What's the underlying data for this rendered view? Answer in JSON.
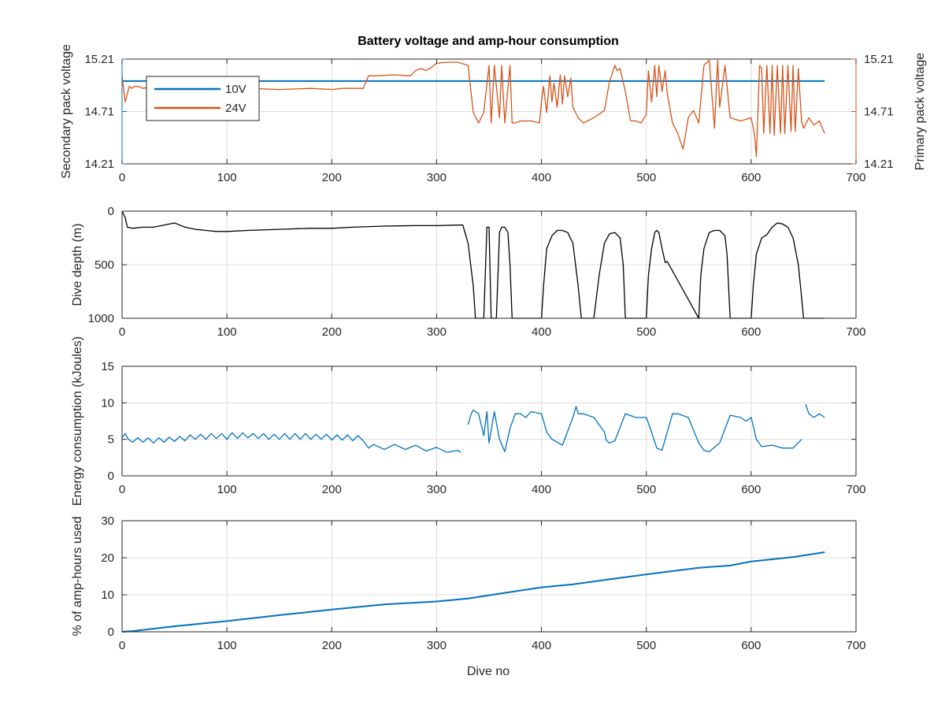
{
  "figure": {
    "title": "Battery voltage and amp-hour consumption",
    "xlabel": "Dive no"
  },
  "colors": {
    "axis": "#262626",
    "grid": "#dcdcdc",
    "blue": "#0072BD",
    "orange": "#D95319",
    "depth": "#000000",
    "legend_border": "#262626"
  },
  "chart_data": [
    {
      "type": "line",
      "id": "voltage",
      "title": "Battery voltage and amp-hour consumption",
      "xlabel": "",
      "ylabel": "Secondary pack voltage",
      "ylabel_right": "Primary pack voltage",
      "xlim": [
        0,
        700
      ],
      "ylim": [
        14.21,
        15.21
      ],
      "ylim_right": [
        14.21,
        15.21
      ],
      "xticks": [
        "0",
        "100",
        "200",
        "300",
        "400",
        "500",
        "600",
        "700"
      ],
      "yticks": [
        "14.21",
        "14.71",
        "15.21"
      ],
      "yticks_right": [
        "14.21",
        "14.71",
        "15.21"
      ],
      "grid": true,
      "legend": "top-left",
      "series": [
        {
          "name": "10V",
          "axis": "left",
          "color": "#0072BD",
          "x": [
            0,
            670
          ],
          "y": [
            15.0,
            15.0
          ]
        },
        {
          "name": "24V",
          "axis": "right",
          "color": "#D95319",
          "x": [
            0,
            3,
            5,
            7,
            9,
            12,
            15,
            20,
            30,
            40,
            50,
            55,
            60,
            70,
            80,
            100,
            120,
            150,
            180,
            200,
            210,
            220,
            230,
            235,
            240,
            260,
            275,
            280,
            285,
            290,
            295,
            300,
            310,
            320,
            330,
            335,
            340,
            345,
            350,
            352,
            355,
            360,
            362,
            365,
            370,
            372,
            375,
            380,
            390,
            398,
            400,
            402,
            405,
            408,
            410,
            412,
            415,
            418,
            420,
            422,
            425,
            428,
            430,
            435,
            440,
            450,
            460,
            465,
            470,
            472,
            475,
            480,
            485,
            490,
            495,
            500,
            502,
            505,
            508,
            510,
            512,
            515,
            518,
            520,
            525,
            530,
            535,
            540,
            545,
            550,
            555,
            560,
            565,
            568,
            570,
            575,
            580,
            590,
            600,
            603,
            605,
            608,
            610,
            612,
            615,
            618,
            620,
            622,
            625,
            628,
            630,
            632,
            635,
            638,
            640,
            642,
            645,
            648,
            650,
            655,
            660,
            665,
            670
          ],
          "y": [
            15.05,
            14.8,
            14.88,
            14.95,
            14.93,
            14.95,
            14.95,
            14.93,
            14.95,
            14.95,
            14.95,
            14.93,
            14.95,
            14.92,
            14.93,
            14.93,
            14.93,
            14.92,
            14.93,
            14.92,
            14.93,
            14.93,
            14.93,
            15.05,
            15.05,
            15.06,
            15.05,
            15.1,
            15.12,
            15.1,
            15.13,
            15.17,
            15.18,
            15.18,
            15.15,
            14.7,
            14.6,
            14.7,
            15.15,
            14.6,
            15.15,
            14.65,
            15.15,
            14.6,
            15.15,
            14.6,
            14.6,
            14.62,
            14.62,
            14.6,
            14.8,
            14.95,
            14.7,
            15.05,
            14.8,
            14.98,
            14.75,
            15.06,
            14.78,
            15.05,
            14.85,
            15.03,
            14.75,
            14.65,
            14.6,
            14.65,
            14.72,
            15.0,
            15.15,
            15.1,
            15.12,
            14.9,
            14.62,
            14.62,
            14.6,
            14.68,
            15.1,
            14.8,
            15.15,
            14.85,
            15.15,
            14.9,
            15.1,
            14.88,
            14.6,
            14.5,
            14.35,
            14.65,
            14.72,
            14.6,
            15.15,
            15.2,
            14.55,
            15.2,
            14.75,
            15.15,
            14.65,
            14.62,
            14.65,
            14.5,
            14.28,
            15.15,
            15.12,
            14.5,
            15.15,
            14.5,
            15.15,
            14.48,
            15.15,
            14.5,
            15.15,
            14.5,
            15.15,
            14.52,
            15.15,
            14.52,
            15.12,
            14.62,
            14.55,
            14.65,
            14.58,
            14.62,
            14.5
          ]
        }
      ]
    },
    {
      "type": "line",
      "id": "depth",
      "xlabel": "",
      "ylabel": "Dive depth (m)",
      "xlim": [
        0,
        700
      ],
      "ylim": [
        0,
        1000
      ],
      "y_reversed": true,
      "xticks": [
        "0",
        "100",
        "200",
        "300",
        "400",
        "500",
        "600",
        "700"
      ],
      "yticks": [
        "0",
        "500",
        "1000"
      ],
      "grid": true,
      "series": [
        {
          "color": "#000000",
          "x": [
            0,
            3,
            5,
            10,
            20,
            30,
            40,
            50,
            55,
            60,
            70,
            80,
            90,
            100,
            120,
            150,
            180,
            200,
            220,
            250,
            280,
            300,
            320,
            325,
            330,
            335,
            337,
            340,
            345,
            348,
            350,
            352,
            355,
            357,
            360,
            362,
            365,
            368,
            370,
            372,
            375,
            400,
            402,
            405,
            410,
            415,
            420,
            425,
            430,
            435,
            438,
            440,
            450,
            455,
            460,
            465,
            470,
            475,
            478,
            480,
            500,
            502,
            505,
            508,
            510,
            512,
            515,
            518,
            520,
            550,
            552,
            555,
            560,
            565,
            570,
            575,
            577,
            580,
            600,
            602,
            605,
            610,
            615,
            620,
            625,
            630,
            635,
            640,
            645,
            648,
            650,
            652,
            670
          ],
          "y": [
            0,
            60,
            150,
            160,
            150,
            150,
            130,
            110,
            130,
            150,
            170,
            180,
            190,
            190,
            180,
            170,
            160,
            160,
            150,
            140,
            135,
            135,
            130,
            130,
            300,
            700,
            1000,
            1000,
            1000,
            150,
            150,
            1000,
            1000,
            1000,
            200,
            150,
            150,
            200,
            500,
            1000,
            1000,
            1000,
            700,
            350,
            230,
            180,
            180,
            200,
            300,
            700,
            1000,
            1000,
            1000,
            600,
            300,
            210,
            200,
            250,
            500,
            1000,
            1000,
            600,
            350,
            200,
            180,
            200,
            350,
            480,
            470,
            1000,
            600,
            350,
            200,
            180,
            180,
            230,
            400,
            1000,
            1000,
            700,
            400,
            250,
            220,
            150,
            110,
            120,
            150,
            250,
            500,
            800,
            1000,
            1000,
            1000
          ]
        }
      ]
    },
    {
      "type": "line",
      "id": "energy",
      "xlabel": "",
      "ylabel": "Energy consumption (kJoules)",
      "xlim": [
        0,
        700
      ],
      "ylim": [
        0,
        15
      ],
      "xticks": [
        "0",
        "100",
        "200",
        "300",
        "400",
        "500",
        "600",
        "700"
      ],
      "yticks": [
        "0",
        "5",
        "10",
        "15"
      ],
      "grid": true,
      "series": [
        {
          "color": "#0072BD",
          "x": [
            0,
            3,
            6,
            10,
            15,
            20,
            25,
            30,
            35,
            40,
            45,
            50,
            55,
            60,
            65,
            70,
            75,
            80,
            85,
            90,
            95,
            100,
            105,
            110,
            115,
            120,
            125,
            130,
            135,
            140,
            145,
            150,
            155,
            160,
            165,
            170,
            175,
            180,
            185,
            190,
            195,
            200,
            205,
            210,
            215,
            220,
            225,
            230,
            235,
            240,
            250,
            260,
            270,
            280,
            290,
            300,
            310,
            320,
            323,
            null,
            330,
            333,
            335,
            340,
            345,
            348,
            350,
            355,
            360,
            365,
            370,
            375,
            380,
            385,
            390,
            400,
            405,
            410,
            420,
            430,
            433,
            435,
            440,
            450,
            460,
            462,
            465,
            470,
            480,
            490,
            500,
            505,
            510,
            515,
            520,
            525,
            530,
            540,
            550,
            555,
            560,
            570,
            580,
            590,
            595,
            600,
            605,
            610,
            620,
            630,
            640,
            648,
            null,
            652,
            655,
            660,
            665,
            670
          ],
          "y": [
            5.2,
            5.8,
            5.0,
            4.6,
            5.2,
            4.6,
            5.2,
            4.5,
            5.2,
            4.6,
            5.3,
            4.7,
            5.4,
            4.8,
            5.6,
            5.0,
            5.7,
            5.0,
            5.8,
            5.1,
            5.8,
            5.0,
            5.9,
            5.1,
            5.9,
            5.2,
            5.8,
            5.1,
            5.8,
            5.0,
            5.7,
            5.0,
            5.8,
            5.0,
            5.8,
            5.0,
            5.8,
            5.0,
            5.7,
            5.0,
            5.7,
            4.9,
            5.6,
            4.9,
            5.6,
            4.8,
            5.5,
            4.8,
            3.8,
            4.3,
            3.6,
            4.3,
            3.6,
            4.2,
            3.4,
            3.9,
            3.2,
            3.5,
            3.2,
            null,
            7.0,
            8.5,
            9.0,
            8.5,
            5.5,
            8.8,
            4.5,
            8.8,
            5.0,
            3.3,
            6.5,
            8.5,
            8.5,
            8.0,
            8.8,
            8.5,
            6.0,
            5.0,
            4.2,
            8.0,
            9.5,
            8.5,
            8.5,
            8.0,
            6.0,
            4.8,
            4.5,
            4.8,
            8.5,
            8.0,
            8.0,
            6.0,
            3.8,
            3.5,
            6.0,
            8.5,
            8.5,
            8.0,
            4.5,
            3.5,
            3.3,
            4.5,
            8.3,
            8.0,
            7.5,
            8.0,
            5.0,
            4.0,
            4.2,
            3.8,
            3.8,
            5.0,
            null,
            9.8,
            8.5,
            8.0,
            8.5,
            8.0
          ]
        }
      ]
    },
    {
      "type": "line",
      "id": "amphours",
      "xlabel": "Dive no",
      "ylabel": "% of amp-hours used",
      "xlim": [
        0,
        700
      ],
      "ylim": [
        0,
        30
      ],
      "xticks": [
        "0",
        "100",
        "200",
        "300",
        "400",
        "500",
        "600",
        "700"
      ],
      "yticks": [
        "0",
        "10",
        "20",
        "30"
      ],
      "grid": true,
      "series": [
        {
          "color": "#0072BD",
          "x": [
            0,
            10,
            50,
            100,
            150,
            200,
            250,
            300,
            330,
            360,
            400,
            430,
            460,
            500,
            550,
            580,
            600,
            640,
            670
          ],
          "y": [
            0,
            0.2,
            1.5,
            2.9,
            4.5,
            6.0,
            7.4,
            8.2,
            9.0,
            10.3,
            12.0,
            12.8,
            14.0,
            15.5,
            17.3,
            17.9,
            19.0,
            20.2,
            21.5
          ]
        }
      ]
    }
  ]
}
